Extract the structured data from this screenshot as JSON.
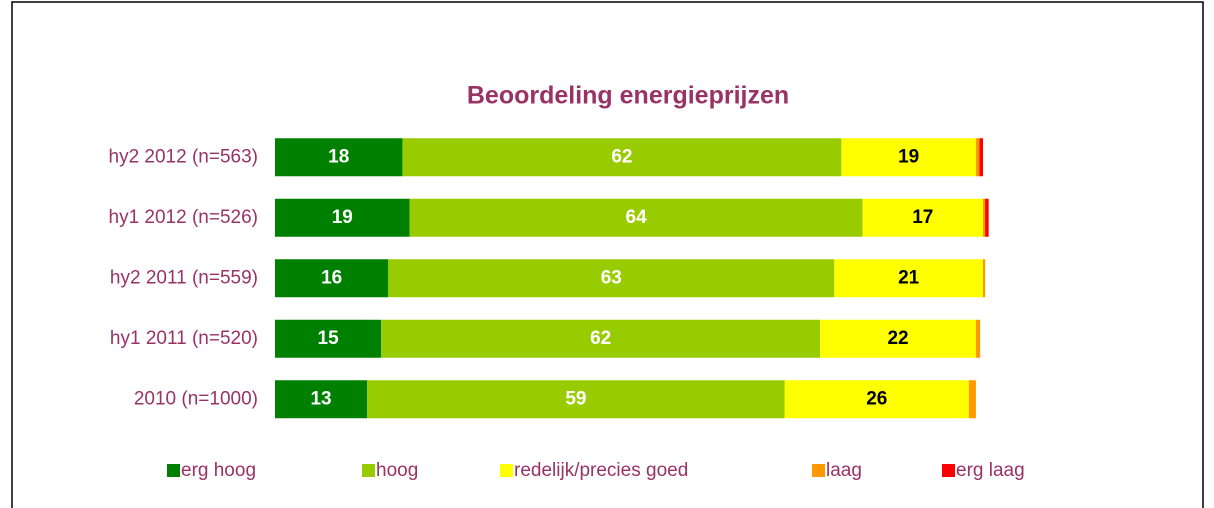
{
  "chart_data": {
    "type": "stacked-barh",
    "title": "Beoordeling energieprijzen",
    "categories": [
      "hy2 2012 (n=563)",
      "hy1 2012 (n=526)",
      "hy2 2011 (n=559)",
      "hy1 2011 (n=520)",
      "2010 (n=1000)"
    ],
    "series": [
      {
        "name": "erg hoog",
        "color": "#008000",
        "label_color": "#ffffff",
        "values": [
          18,
          19,
          16,
          15,
          13
        ]
      },
      {
        "name": "hoog",
        "color": "#99cc00",
        "label_color": "#ffffff",
        "values": [
          62,
          64,
          63,
          62,
          59
        ]
      },
      {
        "name": "redelijk/precies goed",
        "color": "#ffff00",
        "label_color": "#000000",
        "values": [
          19,
          17,
          21,
          22,
          26
        ]
      },
      {
        "name": "laag",
        "color": "#ff9900",
        "label_color": "#000000",
        "values": [
          0.5,
          0.3,
          0.3,
          0.6,
          1.0
        ]
      },
      {
        "name": "erg laag",
        "color": "#ff0000",
        "label_color": "#000000",
        "values": [
          0.5,
          0.5,
          0,
          0,
          0
        ]
      }
    ],
    "xlim": [
      0,
      100
    ]
  }
}
